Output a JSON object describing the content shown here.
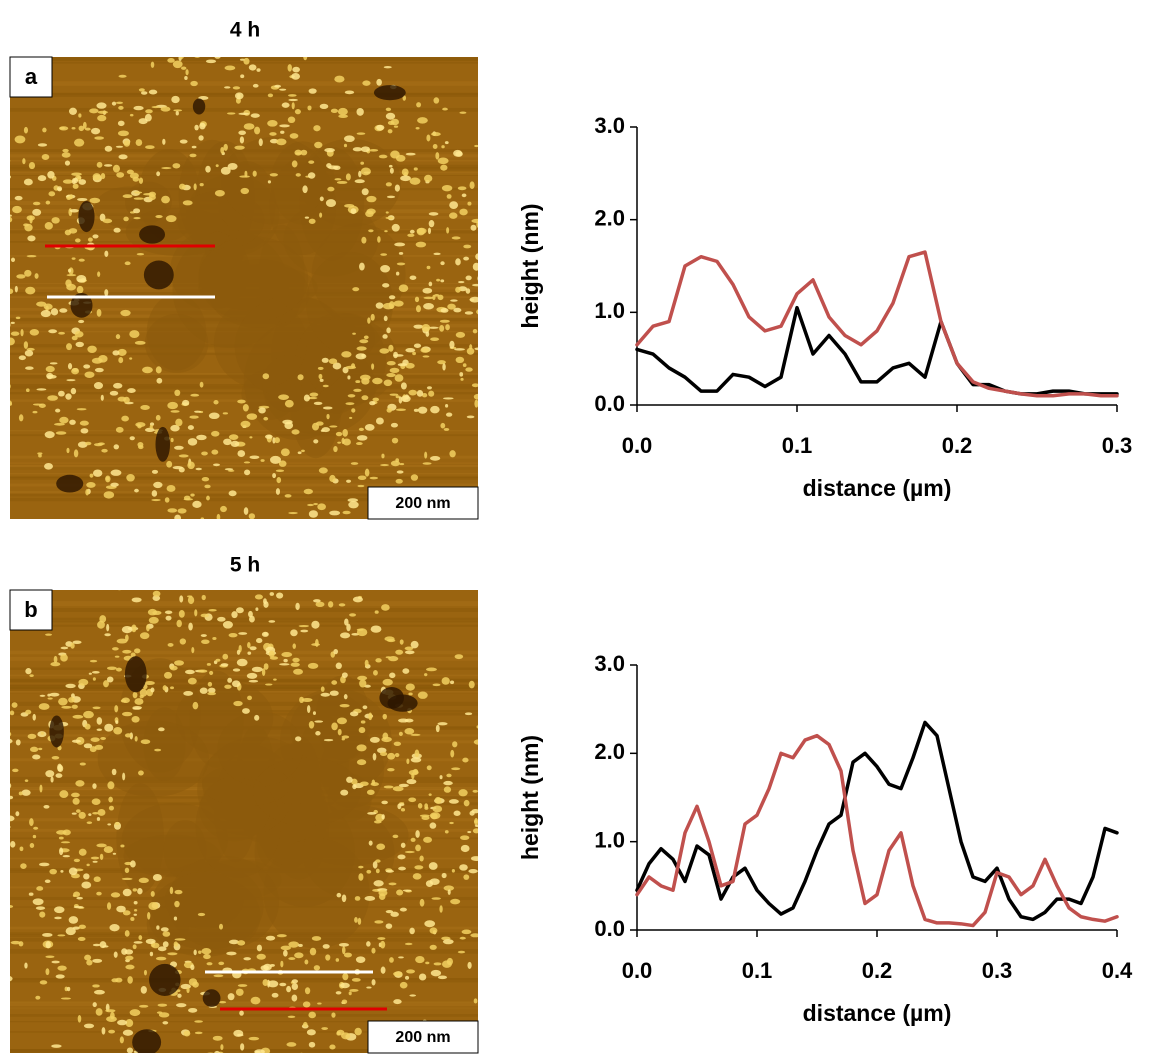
{
  "panels": [
    {
      "title": "4 h",
      "label": "a",
      "scale_bar": "200 nm"
    },
    {
      "title": "5 h",
      "label": "b",
      "scale_bar": "200 nm"
    }
  ],
  "chart_data": [
    {
      "type": "line",
      "xlabel": "distance (µm)",
      "ylabel": "height (nm)",
      "x": [
        0,
        0.01,
        0.02,
        0.03,
        0.04,
        0.05,
        0.06,
        0.07,
        0.08,
        0.09,
        0.1,
        0.11,
        0.12,
        0.13,
        0.14,
        0.15,
        0.16,
        0.17,
        0.18,
        0.19,
        0.2,
        0.21,
        0.22,
        0.23,
        0.24,
        0.25,
        0.26,
        0.27,
        0.28,
        0.29,
        0.3
      ],
      "series": [
        {
          "color": "#000000",
          "values": [
            0.6,
            0.55,
            0.4,
            0.3,
            0.15,
            0.15,
            0.33,
            0.3,
            0.2,
            0.3,
            1.05,
            0.55,
            0.75,
            0.55,
            0.25,
            0.25,
            0.4,
            0.45,
            0.3,
            0.9,
            0.45,
            0.22,
            0.22,
            0.15,
            0.12,
            0.12,
            0.15,
            0.15,
            0.12,
            0.12,
            0.12
          ]
        },
        {
          "color": "#c0504d",
          "values": [
            0.65,
            0.85,
            0.9,
            1.5,
            1.6,
            1.55,
            1.3,
            0.95,
            0.8,
            0.85,
            1.2,
            1.35,
            0.95,
            0.75,
            0.65,
            0.8,
            1.1,
            1.6,
            1.65,
            0.9,
            0.45,
            0.25,
            0.18,
            0.15,
            0.12,
            0.1,
            0.1,
            0.12,
            0.12,
            0.1,
            0.1
          ]
        }
      ],
      "xlim": [
        0,
        0.3
      ],
      "xticks": [
        {
          "value": 0,
          "label": "0.0"
        },
        0.1,
        0.2,
        0.3
      ],
      "ylim": [
        0,
        3
      ],
      "yticks": [
        {
          "value": 0,
          "label": "0.0"
        },
        {
          "value": 1,
          "label": "1.0"
        },
        {
          "value": 2,
          "label": "2.0"
        },
        {
          "value": 3,
          "label": "3.0"
        }
      ]
    },
    {
      "type": "line",
      "xlabel": "distance (µm)",
      "ylabel": "height (nm)",
      "x": [
        0,
        0.01,
        0.02,
        0.03,
        0.04,
        0.05,
        0.06,
        0.07,
        0.08,
        0.09,
        0.1,
        0.11,
        0.12,
        0.13,
        0.14,
        0.15,
        0.16,
        0.17,
        0.18,
        0.19,
        0.2,
        0.21,
        0.22,
        0.23,
        0.24,
        0.25,
        0.26,
        0.27,
        0.28,
        0.29,
        0.3,
        0.31,
        0.32,
        0.33,
        0.34,
        0.35,
        0.36,
        0.37,
        0.38,
        0.39,
        0.4
      ],
      "series": [
        {
          "color": "#000000",
          "values": [
            0.45,
            0.75,
            0.92,
            0.8,
            0.55,
            0.95,
            0.85,
            0.35,
            0.6,
            0.7,
            0.45,
            0.3,
            0.18,
            0.25,
            0.55,
            0.9,
            1.2,
            1.3,
            1.9,
            2.0,
            1.85,
            1.65,
            1.6,
            1.95,
            2.35,
            2.2,
            1.6,
            1.0,
            0.6,
            0.55,
            0.7,
            0.35,
            0.15,
            0.12,
            0.2,
            0.35,
            0.35,
            0.3,
            0.6,
            1.15,
            1.1
          ]
        },
        {
          "color": "#c0504d",
          "values": [
            0.4,
            0.6,
            0.5,
            0.45,
            1.1,
            1.4,
            1.0,
            0.5,
            0.55,
            1.2,
            1.3,
            1.6,
            2.0,
            1.95,
            2.15,
            2.2,
            2.1,
            1.8,
            0.9,
            0.3,
            0.4,
            0.9,
            1.1,
            0.5,
            0.12,
            0.08,
            0.08,
            0.07,
            0.05,
            0.2,
            0.65,
            0.6,
            0.4,
            0.5,
            0.8,
            0.5,
            0.25,
            0.15,
            0.12,
            0.1,
            0.15
          ]
        }
      ],
      "xlim": [
        0,
        0.4
      ],
      "xticks": [
        {
          "value": 0,
          "label": "0.0"
        },
        0.1,
        0.2,
        0.3,
        0.4
      ],
      "ylim": [
        0,
        3
      ],
      "yticks": [
        {
          "value": 0,
          "label": "0.0"
        },
        {
          "value": 1,
          "label": "1.0"
        },
        {
          "value": 2,
          "label": "2.0"
        },
        {
          "value": 3,
          "label": "3.0"
        }
      ]
    }
  ]
}
